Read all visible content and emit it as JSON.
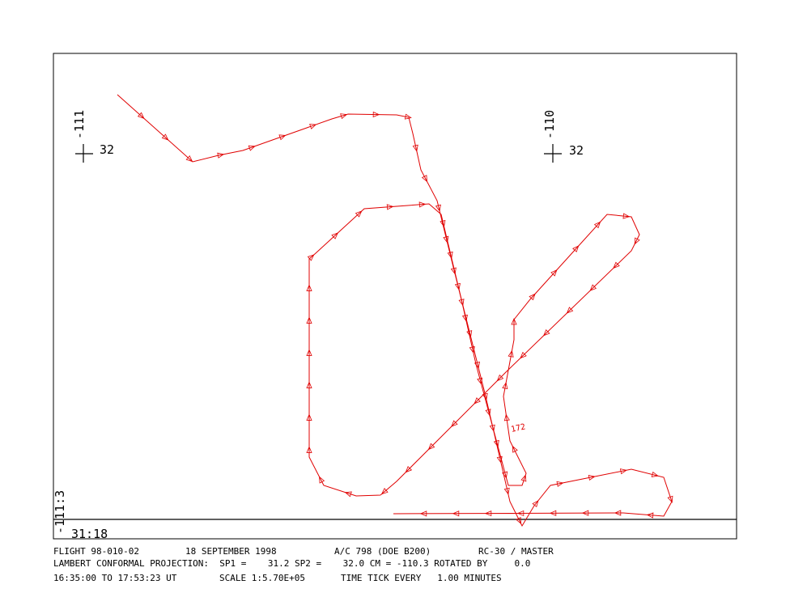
{
  "map": {
    "grid_marks": [
      {
        "longitude": "-111",
        "latitude": "32"
      },
      {
        "longitude": "-110",
        "latitude": "32"
      }
    ],
    "corner_longitude": "-111:3",
    "corner_latitude": "31:18",
    "track_label": "172"
  },
  "footer": {
    "line1": [
      "FLIGHT 98-010-02",
      "18 SEPTEMBER 1998",
      "A/C 798 (DOE B200)",
      "RC-30 / MASTER"
    ],
    "line2": "LAMBERT CONFORMAL PROJECTION:  SP1 =    31.2 SP2 =    32.0 CM = -110.3 ROTATED BY     0.0",
    "line3": [
      "16:35:00 TO 17:53:23 UT",
      "SCALE 1:5.70E+05",
      "TIME TICK EVERY   1.00 MINUTES"
    ]
  }
}
